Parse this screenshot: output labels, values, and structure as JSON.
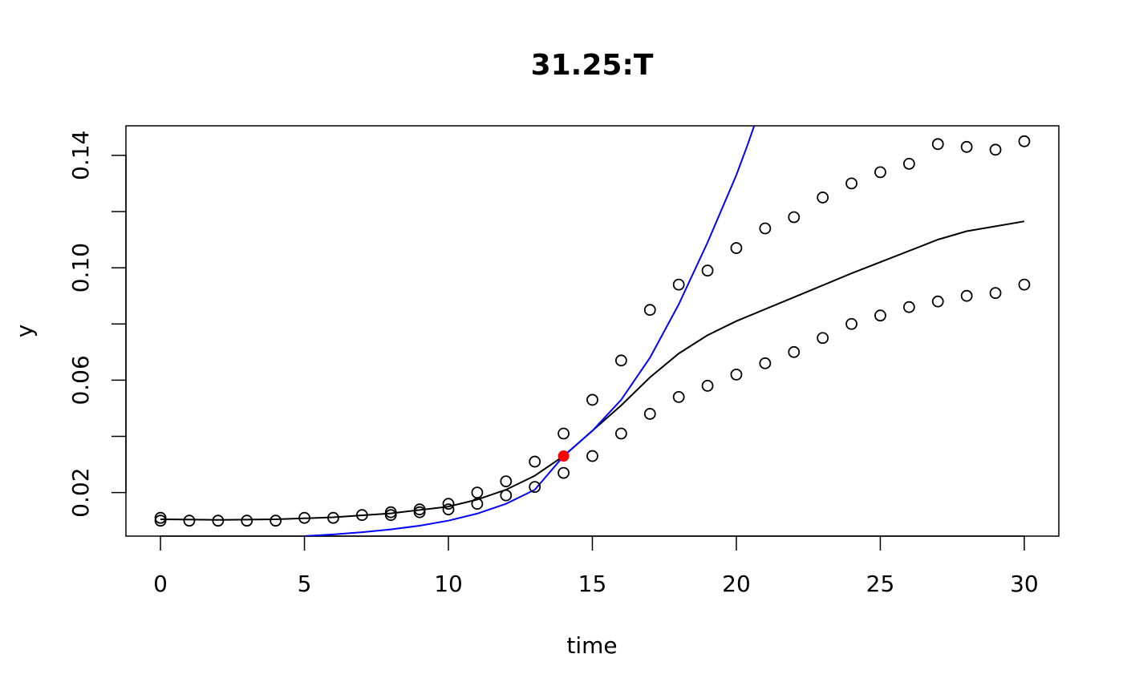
{
  "chart_data": {
    "type": "scatter",
    "title": "31.25:T",
    "xlabel": "time",
    "ylabel": "y",
    "xlim": [
      -1.2,
      31.2
    ],
    "ylim": [
      0.0045,
      0.1505
    ],
    "xticks": [
      0,
      5,
      10,
      15,
      20,
      25,
      30
    ],
    "yticks": [
      0.02,
      0.06,
      0.1,
      0.14
    ],
    "yminorticks": [
      0.04,
      0.08,
      0.12
    ],
    "grid": false,
    "legend": "none",
    "colors": {
      "points": "#000000",
      "smooth": "#000000",
      "exponential": "#0000ff",
      "highlight": "#ff0000"
    },
    "series": [
      {
        "kind": "points",
        "x": [
          0,
          0,
          1,
          2,
          3,
          4,
          5,
          6,
          7,
          8,
          8,
          9,
          9,
          10,
          10,
          11,
          11,
          12,
          12,
          13,
          13,
          14,
          14,
          15,
          15,
          16,
          16,
          17,
          17,
          18,
          18,
          19,
          19,
          20,
          20,
          21,
          21,
          22,
          22,
          23,
          23,
          24,
          24,
          25,
          25,
          26,
          26,
          27,
          27,
          28,
          28,
          29,
          29,
          30,
          30
        ],
        "y": [
          0.011,
          0.01,
          0.01,
          0.01,
          0.01,
          0.01,
          0.011,
          0.011,
          0.012,
          0.012,
          0.013,
          0.013,
          0.014,
          0.014,
          0.016,
          0.016,
          0.02,
          0.019,
          0.024,
          0.022,
          0.031,
          0.027,
          0.041,
          0.033,
          0.053,
          0.041,
          0.067,
          0.048,
          0.085,
          0.054,
          0.094,
          0.058,
          0.099,
          0.062,
          0.107,
          0.066,
          0.114,
          0.07,
          0.118,
          0.075,
          0.125,
          0.08,
          0.13,
          0.083,
          0.134,
          0.086,
          0.137,
          0.088,
          0.144,
          0.09,
          0.143,
          0.091,
          0.142,
          0.094,
          0.145
        ]
      },
      {
        "kind": "line",
        "color": "smooth",
        "x": [
          0,
          2,
          4,
          6,
          8,
          10,
          11,
          12,
          13,
          14,
          15,
          16,
          17,
          18,
          19,
          20,
          22,
          24,
          25,
          26,
          27,
          28,
          30
        ],
        "y": [
          0.0105,
          0.0103,
          0.0105,
          0.0112,
          0.0126,
          0.015,
          0.0175,
          0.021,
          0.026,
          0.033,
          0.042,
          0.051,
          0.061,
          0.0695,
          0.076,
          0.081,
          0.0895,
          0.098,
          0.102,
          0.106,
          0.11,
          0.113,
          0.1165
        ]
      },
      {
        "kind": "line",
        "color": "exponential",
        "x": [
          5,
          6,
          7,
          8,
          9,
          10,
          11,
          12,
          13,
          14,
          15,
          16,
          17,
          18,
          19,
          20,
          20.4,
          20.62
        ],
        "y": [
          0.0045,
          0.0051,
          0.0059,
          0.0069,
          0.0082,
          0.01,
          0.0125,
          0.016,
          0.021,
          0.033,
          0.042,
          0.053,
          0.068,
          0.087,
          0.109,
          0.133,
          0.144,
          0.1505
        ]
      },
      {
        "kind": "highlight",
        "x": [
          14
        ],
        "y": [
          0.033
        ]
      }
    ]
  }
}
